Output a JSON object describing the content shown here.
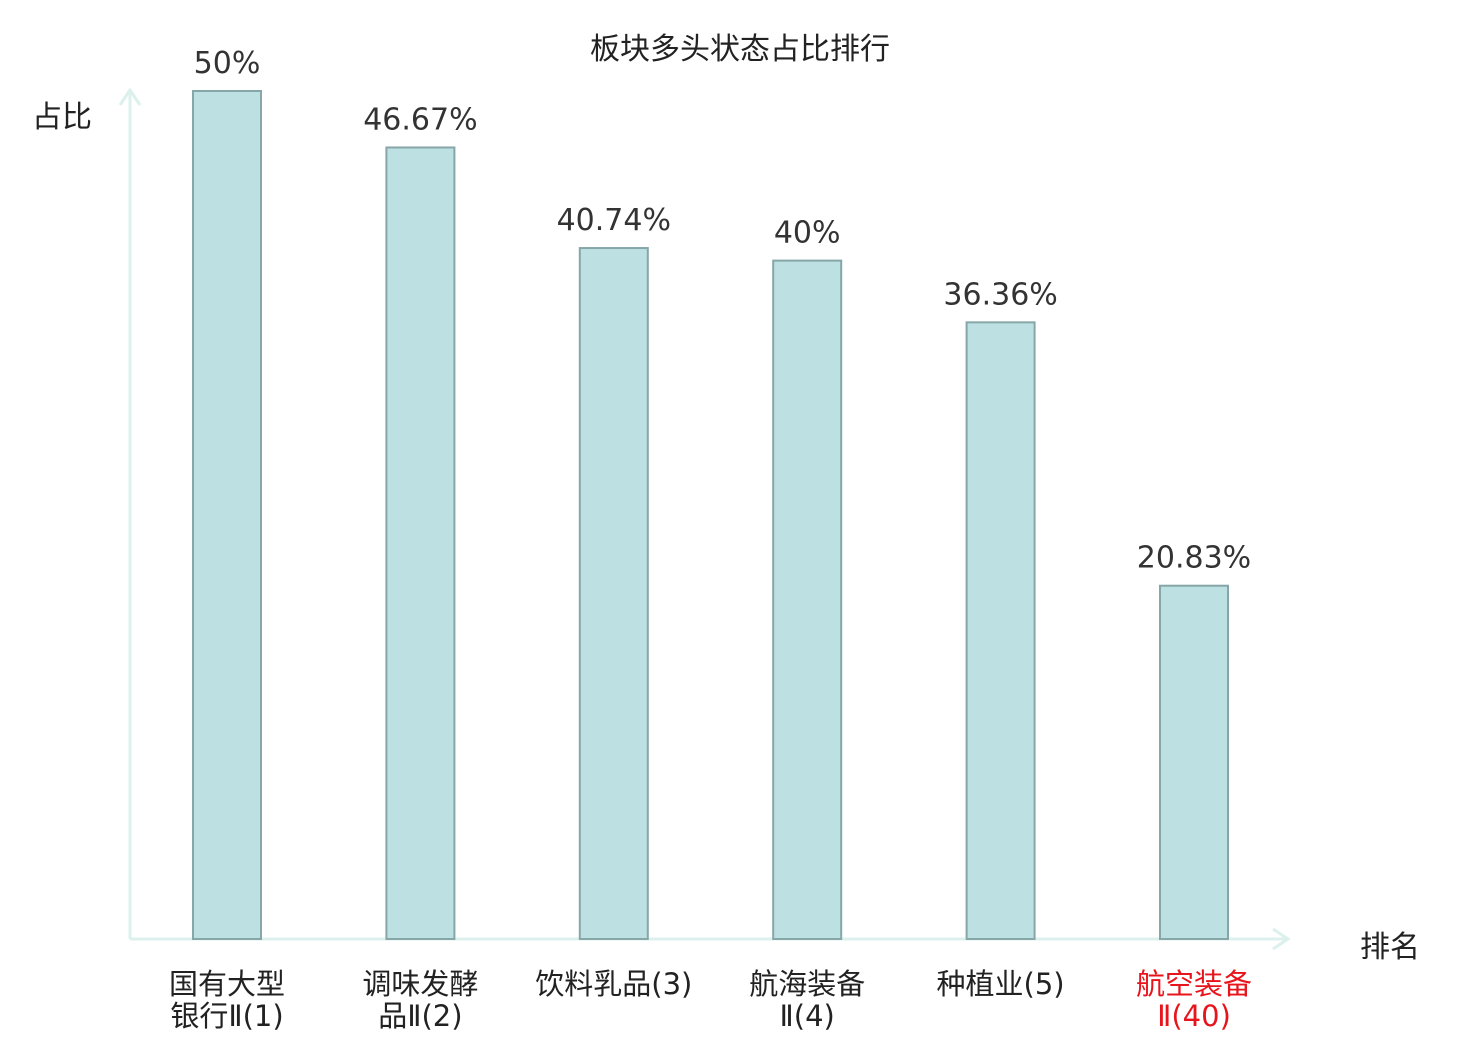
{
  "chart_data": {
    "type": "bar",
    "title": "板块多头状态占比排行",
    "ylabel": "占比",
    "xlabel": "排名",
    "categories": [
      [
        "国有大型",
        "银行Ⅱ(1)"
      ],
      [
        "调味发酵",
        "品Ⅱ(2)"
      ],
      [
        "饮料乳品(3)"
      ],
      [
        "航海装备",
        "Ⅱ(4)"
      ],
      [
        "种植业(5)"
      ],
      [
        "航空装备",
        "Ⅱ(40)"
      ]
    ],
    "values": [
      50,
      46.67,
      40.74,
      40,
      36.36,
      20.83
    ],
    "value_labels": [
      "50%",
      "46.67%",
      "40.74%",
      "40%",
      "36.36%",
      "20.83%"
    ],
    "highlight_index": 5,
    "ylim": [
      0,
      50
    ],
    "grid": false,
    "legend": "none"
  },
  "colors": {
    "bar_fill": "#bde0e3",
    "bar_stroke": "#86a6a8",
    "axis": "#dcf0ed",
    "text": "#333333",
    "highlight": "#e8141b"
  }
}
